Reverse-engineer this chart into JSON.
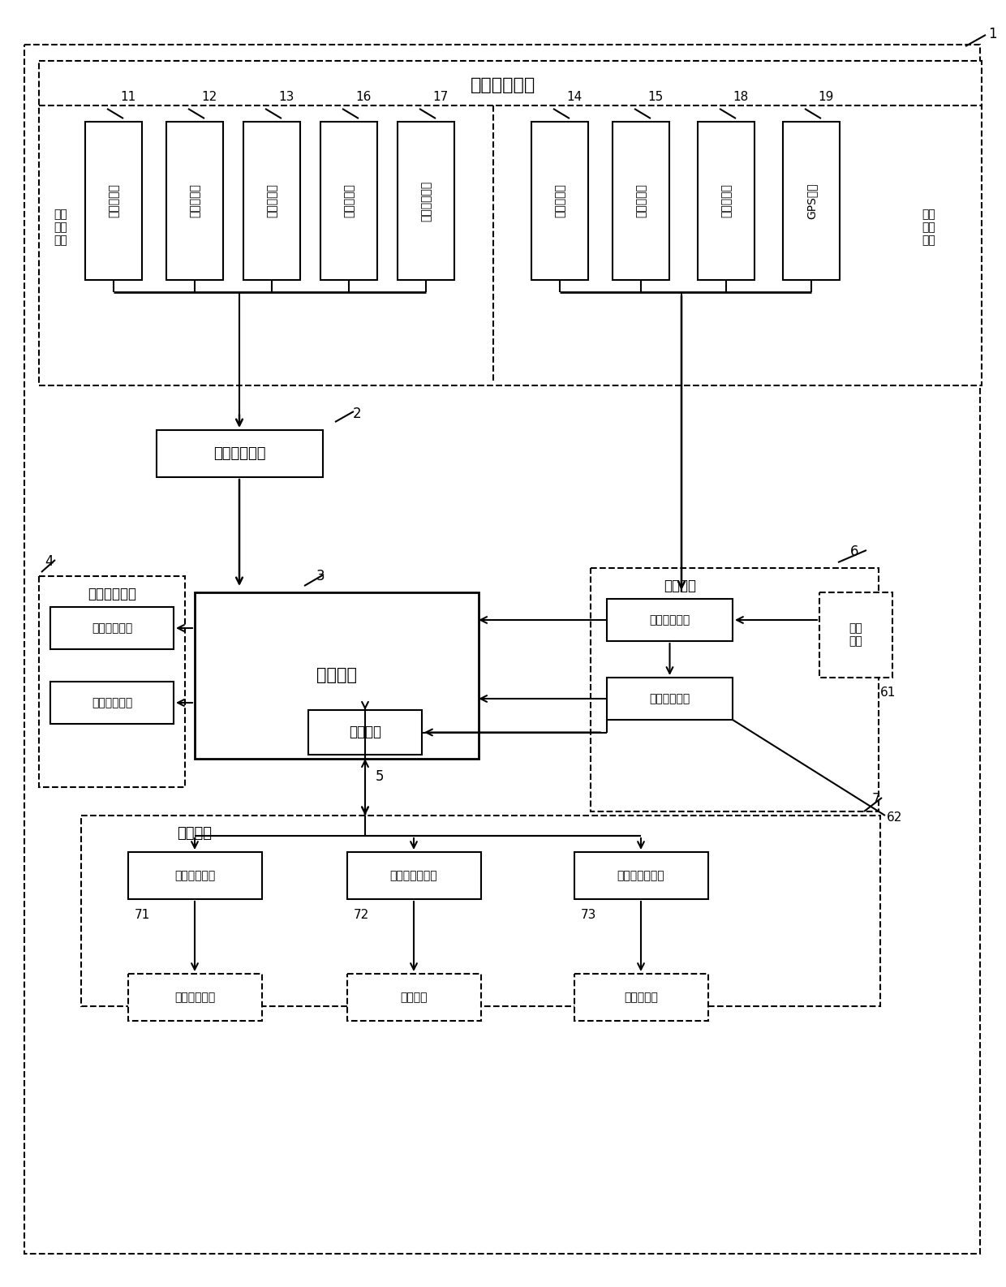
{
  "title": "数据采集模块",
  "sensors_left": [
    "应变传感器",
    "拉力传感器",
    "噪声传感器",
    "风速传感器",
    "加速度传感器"
  ],
  "sensors_left_ids": [
    "11",
    "12",
    "13",
    "16",
    "17"
  ],
  "sensors_right": [
    "温度传感器",
    "湿度传感器",
    "三轴陀螺仪",
    "GPS模块"
  ],
  "sensors_right_ids": [
    "14",
    "15",
    "18",
    "19"
  ],
  "label_analog": "采集\n模拟\n信号",
  "label_digital": "采集\n数字\n信号",
  "module_adjust": "调整转换模块",
  "module_control": "控制模块",
  "module_storage": "数据存储模块",
  "module_power": "供电模块",
  "module_alarm": "报警模块",
  "module_comm": "通讯模块",
  "unit_smart": "智能存储单元",
  "unit_buffer": "数据缓存单元",
  "unit_power1": "第一供电单元",
  "unit_power2": "第二供电单元",
  "unit_ext_power": "外部\n电源",
  "unit_sat": "卫星通讯单元",
  "unit_iot": "物联网通讯单元",
  "unit_eth": "以太网通讯单元",
  "dest_remote": "远程控制中心",
  "dest_cloud": "云服务器",
  "dest_ship": "船舶控制室"
}
